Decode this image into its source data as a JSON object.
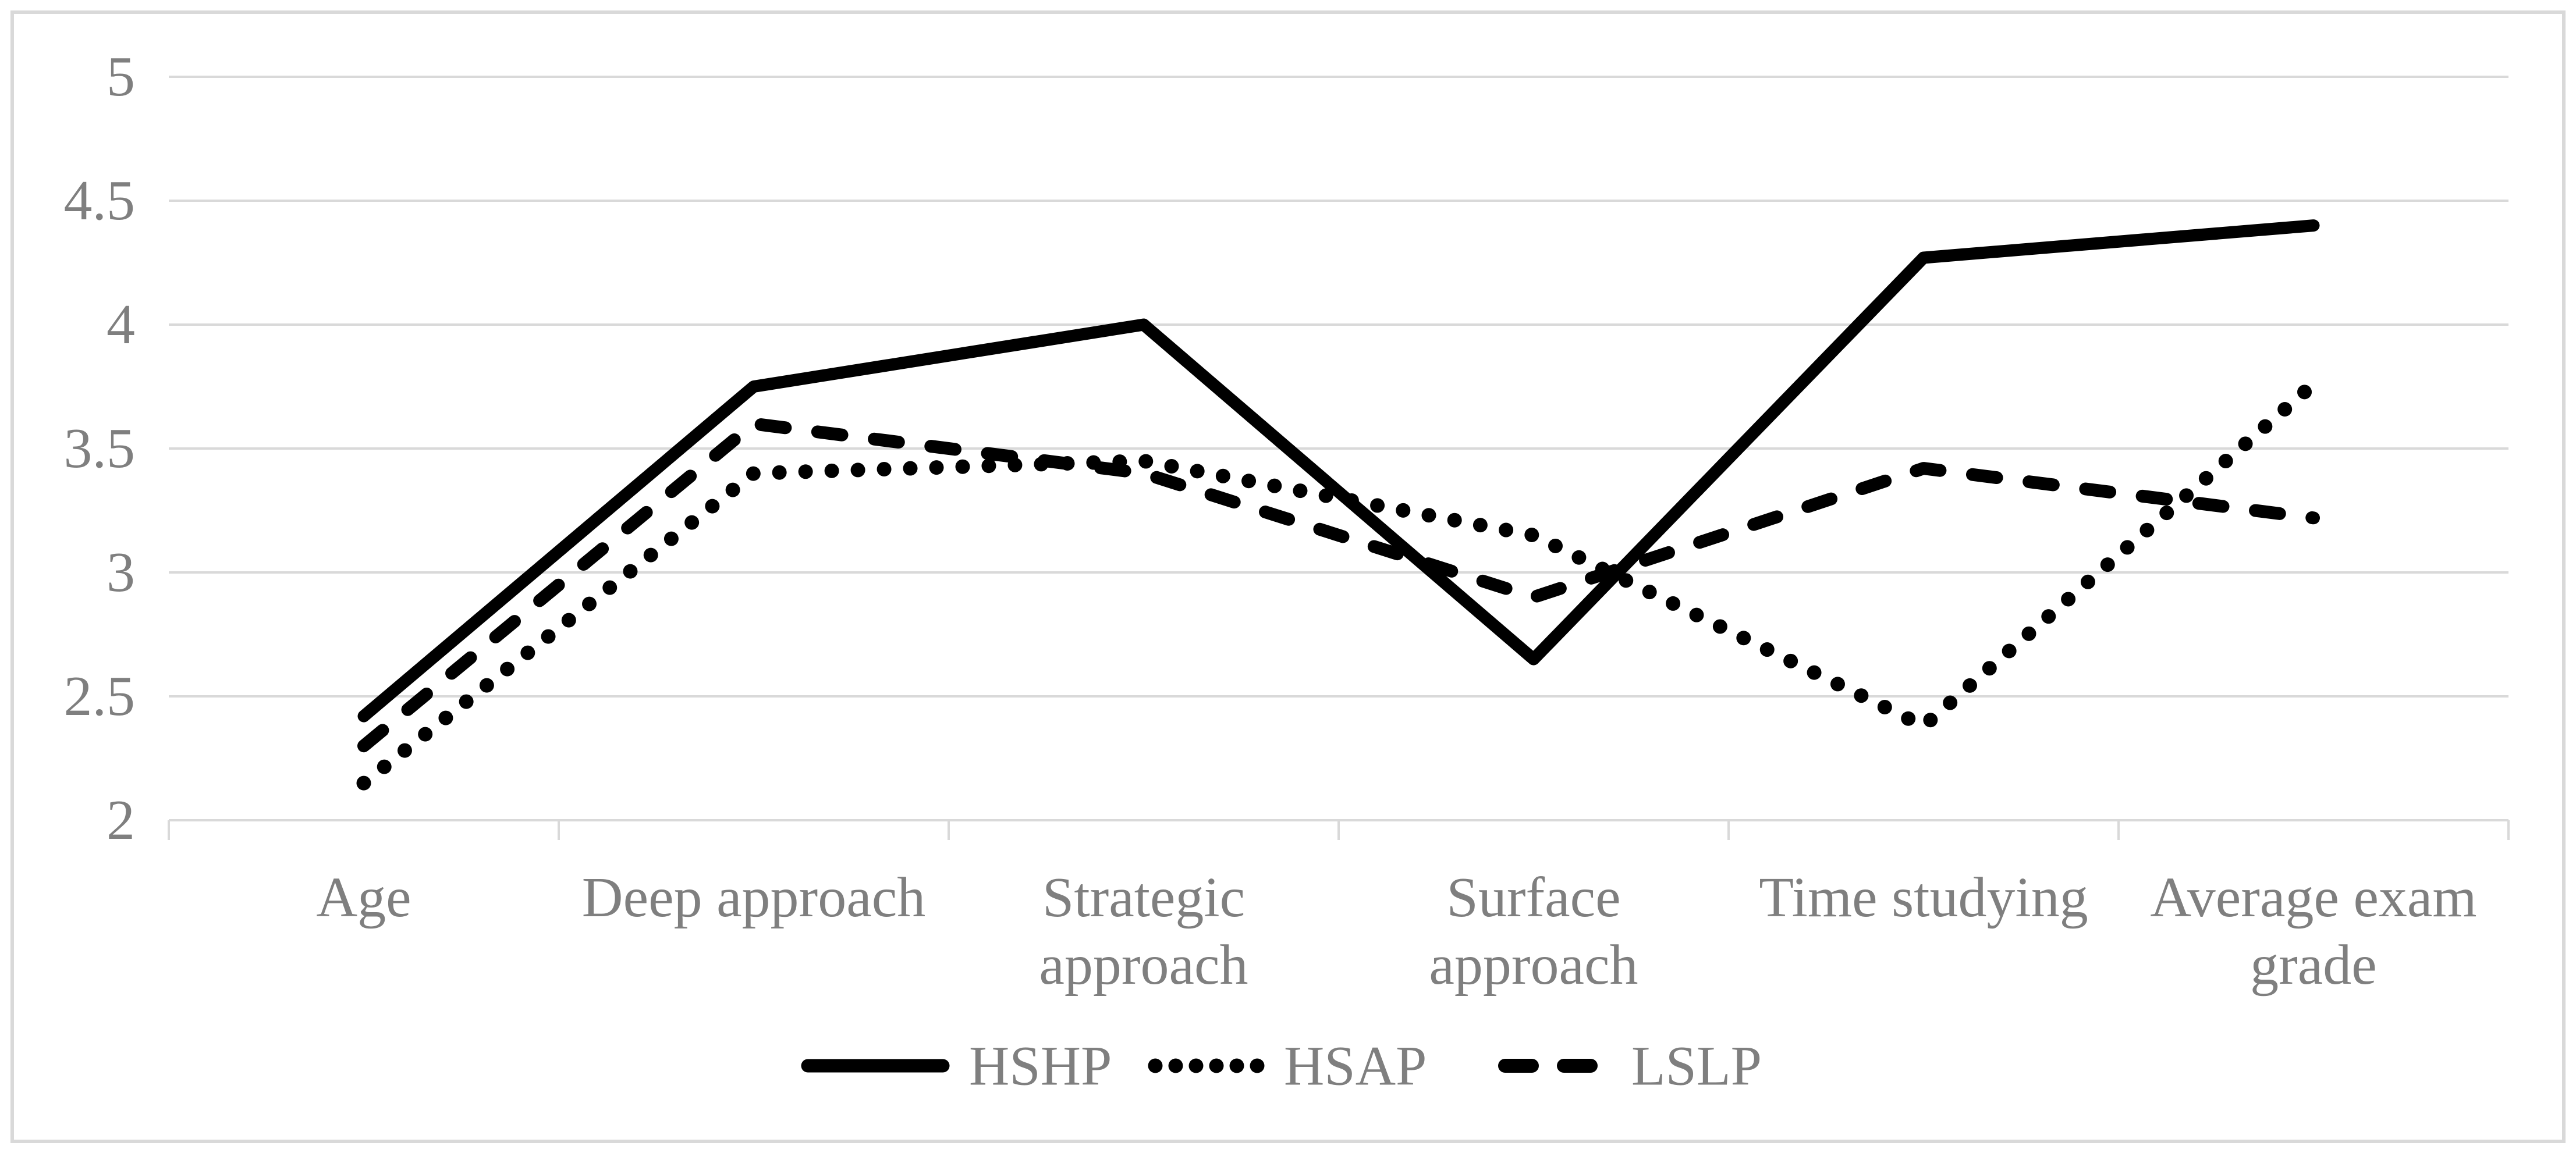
{
  "chart_data": {
    "type": "line",
    "title": "",
    "xlabel": "",
    "ylabel": "",
    "categories": [
      "Age",
      "Deep approach",
      "Strategic approach",
      "Surface approach",
      "Time studying",
      "Average exam grade"
    ],
    "category_label_lines": [
      [
        "Age"
      ],
      [
        "Deep approach"
      ],
      [
        "Strategic",
        "approach"
      ],
      [
        "Surface",
        "approach"
      ],
      [
        "Time studying"
      ],
      [
        "Average exam",
        "grade"
      ]
    ],
    "series": [
      {
        "name": "HSHP",
        "style": "solid",
        "values": [
          2.42,
          3.75,
          4.0,
          2.65,
          4.27,
          4.4
        ]
      },
      {
        "name": "HSAP",
        "style": "dotted",
        "values": [
          2.15,
          3.4,
          3.45,
          3.15,
          2.38,
          3.76
        ]
      },
      {
        "name": "LSLP",
        "style": "dashed",
        "values": [
          2.3,
          3.6,
          3.4,
          2.9,
          3.42,
          3.22
        ]
      }
    ],
    "legend": [
      {
        "label": "HSHP",
        "style": "solid"
      },
      {
        "label": "HSAP",
        "style": "dotted"
      },
      {
        "label": "LSLP",
        "style": "dashed"
      }
    ],
    "legend_position": "bottom",
    "ylim": [
      2,
      5
    ],
    "ytick_values": [
      2,
      2.5,
      3,
      3.5,
      4,
      4.5,
      5
    ],
    "ytick_labels": [
      "2",
      "2.5",
      "3",
      "3.5",
      "4",
      "4.5",
      "5"
    ],
    "grid": "horizontal"
  },
  "colors": {
    "line": "#000000",
    "grid": "#d9d9d9",
    "frame": "#d9d9d9",
    "tick": "#d9d9d9",
    "label": "#7f7f7f",
    "background": "#ffffff"
  }
}
